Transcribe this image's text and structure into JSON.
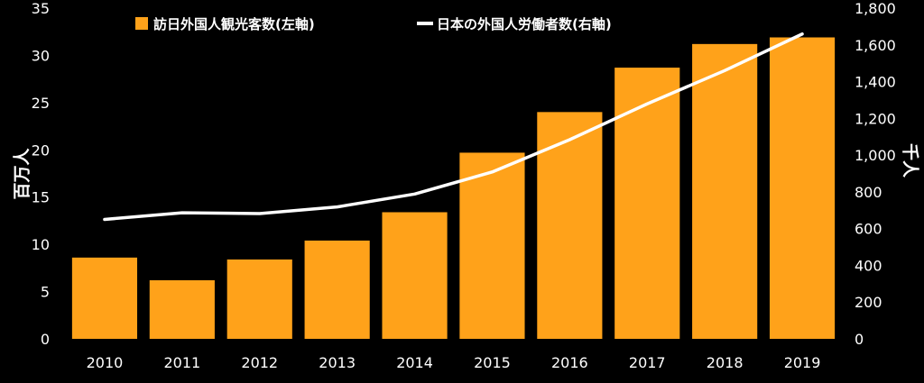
{
  "chart_data": {
    "type": "bar",
    "categories": [
      "2010",
      "2011",
      "2012",
      "2013",
      "2014",
      "2015",
      "2016",
      "2017",
      "2018",
      "2019"
    ],
    "series": [
      {
        "name": "訪日外国人観光客数(左軸)",
        "type": "bar",
        "axis": "left",
        "color": "#FFA21A",
        "values": [
          8.6,
          6.2,
          8.4,
          10.4,
          13.4,
          19.7,
          24.0,
          28.7,
          31.2,
          31.9
        ]
      },
      {
        "name": "日本の外国人労働者数(右軸)",
        "type": "line",
        "axis": "right",
        "color": "#FFFFFF",
        "values": [
          650,
          686,
          682,
          718,
          788,
          908,
          1084,
          1279,
          1460,
          1659
        ]
      }
    ],
    "y_left": {
      "label": "百万人",
      "ylim": [
        0,
        35
      ],
      "ticks": [
        0,
        5,
        10,
        15,
        20,
        25,
        30,
        35
      ]
    },
    "y_right": {
      "label": "千人",
      "ylim": [
        0,
        1800
      ],
      "ticks": [
        "0",
        "200",
        "400",
        "600",
        "800",
        "1,000",
        "1,200",
        "1,400",
        "1,600",
        "1,800"
      ]
    },
    "legend": "top",
    "grid": false,
    "background": "#000000"
  }
}
